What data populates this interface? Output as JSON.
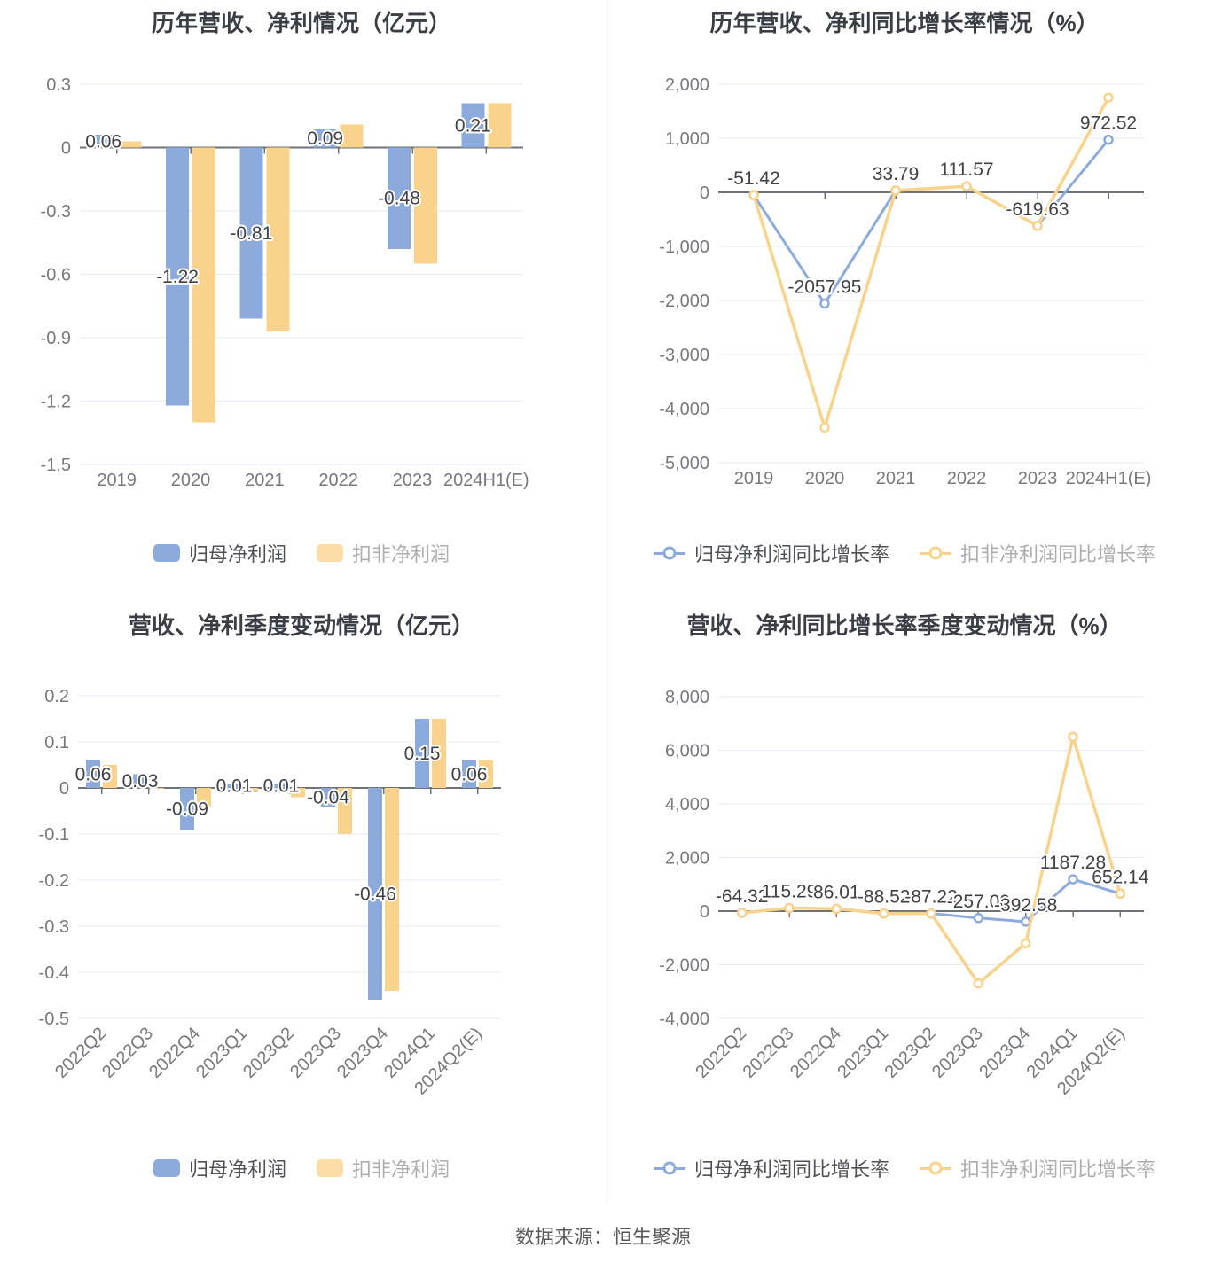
{
  "palette": {
    "blue": "#8caadb",
    "yellow": "#f9d28b",
    "yellow_light": "#fbdda7",
    "grid": "#e6ebf5",
    "zero_axis": "#6f7277",
    "tick_text": "#76797e",
    "label_text": "#3f4145"
  },
  "footer": {
    "source": "数据来源：恒生聚源"
  },
  "chart_data": [
    {
      "type": "bar",
      "title": "历年营收、净利情况（亿元）",
      "categories": [
        "2019",
        "2020",
        "2021",
        "2022",
        "2023",
        "2024H1(E)"
      ],
      "series": [
        {
          "name": "归母净利润",
          "values": [
            0.06,
            -1.22,
            -0.81,
            0.09,
            -0.48,
            0.21
          ]
        },
        {
          "name": "扣非净利润",
          "values": [
            0.03,
            -1.3,
            -0.87,
            0.11,
            -0.55,
            0.21
          ]
        }
      ],
      "data_labels": [
        "0.06",
        "-1.22",
        "-0.81",
        "0.09",
        "-0.48",
        "0.21"
      ],
      "y_ticks": [
        {
          "value": 0.3,
          "label": "0.3"
        },
        {
          "value": 0,
          "label": "0"
        },
        {
          "value": -0.3,
          "label": "-0.3"
        },
        {
          "value": -0.6,
          "label": "-0.6"
        },
        {
          "value": -0.9,
          "label": "-0.9"
        },
        {
          "value": -1.2,
          "label": "-1.2"
        },
        {
          "value": -1.5,
          "label": "-1.5"
        }
      ],
      "legend_position": "bottom",
      "grid": true
    },
    {
      "type": "line",
      "title": "历年营收、净利同比增长率情况（%）",
      "categories": [
        "2019",
        "2020",
        "2021",
        "2022",
        "2023",
        "2024H1(E)"
      ],
      "series": [
        {
          "name": "归母净利润同比增长率",
          "values": [
            -51.42,
            -2057.95,
            33.79,
            111.57,
            -619.63,
            972.52
          ]
        },
        {
          "name": "扣非净利润同比增长率",
          "values": [
            -51.42,
            -4350,
            33.79,
            111.57,
            -619.63,
            1750
          ]
        }
      ],
      "data_labels": [
        "-51.42",
        "-2057.95",
        "33.79",
        "111.57",
        "-619.63",
        "972.52"
      ],
      "y_ticks": [
        {
          "value": 2000,
          "label": "2,000"
        },
        {
          "value": 1000,
          "label": "1,000"
        },
        {
          "value": 0,
          "label": "0"
        },
        {
          "value": -1000,
          "label": "-1,000"
        },
        {
          "value": -2000,
          "label": "-2,000"
        },
        {
          "value": -3000,
          "label": "-3,000"
        },
        {
          "value": -4000,
          "label": "-4,000"
        },
        {
          "value": -5000,
          "label": "-5,000"
        }
      ],
      "legend_position": "bottom",
      "grid": true
    },
    {
      "type": "bar",
      "title": "营收、净利季度变动情况（亿元）",
      "categories": [
        "2022Q2",
        "2022Q3",
        "2022Q4",
        "2023Q1",
        "2023Q2",
        "2023Q3",
        "2023Q4",
        "2024Q1",
        "2024Q2(E)"
      ],
      "series": [
        {
          "name": "归母净利润",
          "values": [
            0.06,
            0.03,
            -0.09,
            0.01,
            0.01,
            -0.04,
            -0.46,
            0.15,
            0.06
          ]
        },
        {
          "name": "扣非净利润",
          "values": [
            0.05,
            0.0,
            -0.04,
            -0.01,
            -0.02,
            -0.1,
            -0.44,
            0.15,
            0.06
          ]
        }
      ],
      "data_labels": [
        "0.06",
        "0.03",
        "-0.09",
        "0.01",
        "0.01",
        "-0.04",
        "-0.46",
        "0.15",
        "0.06"
      ],
      "y_ticks": [
        {
          "value": 0.2,
          "label": "0.2"
        },
        {
          "value": 0.1,
          "label": "0.1"
        },
        {
          "value": 0,
          "label": "0"
        },
        {
          "value": -0.1,
          "label": "-0.1"
        },
        {
          "value": -0.2,
          "label": "-0.2"
        },
        {
          "value": -0.3,
          "label": "-0.3"
        },
        {
          "value": -0.4,
          "label": "-0.4"
        },
        {
          "value": -0.5,
          "label": "-0.5"
        }
      ],
      "x_label_rotate": 45,
      "legend_position": "bottom",
      "grid": true
    },
    {
      "type": "line",
      "title": "营收、净利同比增长率季度变动情况（%）",
      "categories": [
        "2022Q2",
        "2022Q3",
        "2022Q4",
        "2023Q1",
        "2023Q2",
        "2023Q3",
        "2023Q4",
        "2024Q1",
        "2024Q2(E)"
      ],
      "series": [
        {
          "name": "归母净利润同比增长率",
          "values": [
            -64.32,
            115.29,
            86.01,
            -88.52,
            -87.22,
            -257.0,
            -392.58,
            1187.28,
            652.14
          ]
        },
        {
          "name": "扣非净利润同比增长率",
          "values": [
            -64.32,
            115.29,
            86.01,
            -88.52,
            -87.22,
            -2700,
            -1200,
            6500,
            652.14
          ]
        }
      ],
      "data_labels": [
        "-64.32",
        "115.29",
        "86.01",
        "-88.52",
        "-87.22",
        "-257.00",
        "-392.58",
        "1187.28",
        "652.14"
      ],
      "y_ticks": [
        {
          "value": 8000,
          "label": "8,000"
        },
        {
          "value": 6000,
          "label": "6,000"
        },
        {
          "value": 4000,
          "label": "4,000"
        },
        {
          "value": 2000,
          "label": "2,000"
        },
        {
          "value": 0,
          "label": "0"
        },
        {
          "value": -2000,
          "label": "-2,000"
        },
        {
          "value": -4000,
          "label": "-4,000"
        }
      ],
      "x_label_rotate": 45,
      "legend_position": "bottom",
      "grid": true
    }
  ]
}
